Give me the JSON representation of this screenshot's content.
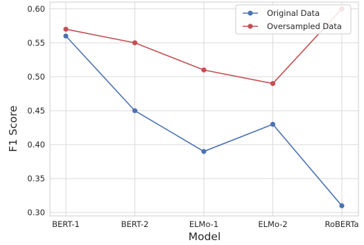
{
  "chart_data": {
    "type": "line",
    "categories": [
      "BERT-1",
      "BERT-2",
      "ELMo-1",
      "ELMo-2",
      "RoBERTa"
    ],
    "series": [
      {
        "name": "Original Data",
        "color": "#4c72b0",
        "values": [
          0.56,
          0.45,
          0.39,
          0.43,
          0.31
        ]
      },
      {
        "name": "Oversampled Data",
        "color": "#c44e52",
        "values": [
          0.57,
          0.55,
          0.51,
          0.49,
          0.6
        ]
      }
    ],
    "title": "",
    "xlabel": "Model",
    "ylabel": "F1 Score",
    "ylim": [
      0.295,
      0.61
    ],
    "yticks": [
      "0.30",
      "0.35",
      "0.40",
      "0.45",
      "0.50",
      "0.55",
      "0.60"
    ],
    "grid": true,
    "legend_position": "top-right"
  }
}
